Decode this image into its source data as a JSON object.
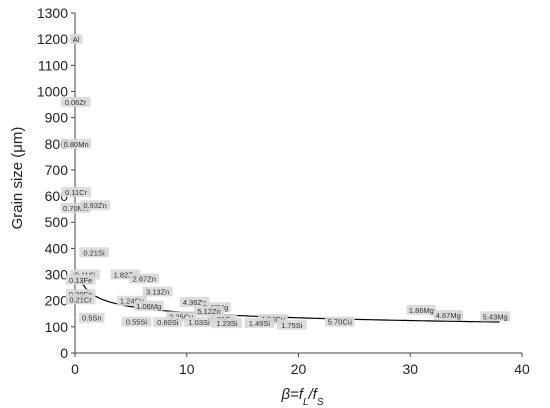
{
  "chart_data": {
    "type": "scatter",
    "xlabel": "β=f_L/f_S",
    "ylabel": "Grain size (μm)",
    "xlim": [
      0,
      40
    ],
    "ylim": [
      0,
      1300
    ],
    "x_ticks": [
      "0",
      "10",
      "20",
      "30",
      "40"
    ],
    "y_ticks": [
      "0",
      "100",
      "200",
      "300",
      "400",
      "500",
      "600",
      "700",
      "800",
      "900",
      "1000",
      "1100",
      "1200",
      "1300"
    ],
    "grid": false,
    "legend": "none",
    "points": [
      {
        "label": "Al",
        "x": 0.1,
        "y": 1200
      },
      {
        "label": "0.06Zr",
        "x": 0.05,
        "y": 960
      },
      {
        "label": "0.80Mn",
        "x": 0.1,
        "y": 800
      },
      {
        "label": "0.11Cr",
        "x": 0.1,
        "y": 615
      },
      {
        "label": "0.70Mn",
        "x": 0.05,
        "y": 555
      },
      {
        "label": "0.93Zn",
        "x": 1.8,
        "y": 565
      },
      {
        "label": "0.21Si",
        "x": 1.7,
        "y": 385
      },
      {
        "label": "0.11Si",
        "x": 0.9,
        "y": 300
      },
      {
        "label": "0.13Fe",
        "x": 0.5,
        "y": 280
      },
      {
        "label": "1.82Zn",
        "x": 4.5,
        "y": 300
      },
      {
        "label": "2.67Zn",
        "x": 6.2,
        "y": 285
      },
      {
        "label": "0.29Fe",
        "x": 0.5,
        "y": 225
      },
      {
        "label": "0.21Cr",
        "x": 0.5,
        "y": 205
      },
      {
        "label": "3.13Zn",
        "x": 7.4,
        "y": 235
      },
      {
        "label": "1.24Cu",
        "x": 5.1,
        "y": 200
      },
      {
        "label": "1.06Mg",
        "x": 6.6,
        "y": 180
      },
      {
        "label": "4.36Zn",
        "x": 10.7,
        "y": 195
      },
      {
        "label": "5.43Mg",
        "x": 12.6,
        "y": 175
      },
      {
        "label": "5.12Zn",
        "x": 12.0,
        "y": 160
      },
      {
        "label": "0.5Sn",
        "x": 1.5,
        "y": 135
      },
      {
        "label": "2.25Cu",
        "x": 9.5,
        "y": 140
      },
      {
        "label": "3.09Cu",
        "x": 13.2,
        "y": 130
      },
      {
        "label": "4.04Cu",
        "x": 17.7,
        "y": 130
      },
      {
        "label": "0.55Si",
        "x": 5.5,
        "y": 120
      },
      {
        "label": "0.60Si",
        "x": 8.3,
        "y": 118
      },
      {
        "label": "1.03Si",
        "x": 11.1,
        "y": 118
      },
      {
        "label": "1.23Si",
        "x": 13.6,
        "y": 114
      },
      {
        "label": "1.49Si",
        "x": 16.5,
        "y": 115
      },
      {
        "label": "1.75Si",
        "x": 19.4,
        "y": 108
      },
      {
        "label": "5.70Cu",
        "x": 23.7,
        "y": 120
      },
      {
        "label": "1.86Mg",
        "x": 31.0,
        "y": 165
      },
      {
        "label": "4.67Mg",
        "x": 33.4,
        "y": 145
      },
      {
        "label": "5.43Mg",
        "x": 37.6,
        "y": 140
      }
    ],
    "trendline": {
      "type": "power",
      "a": 245,
      "b": -0.2
    }
  }
}
